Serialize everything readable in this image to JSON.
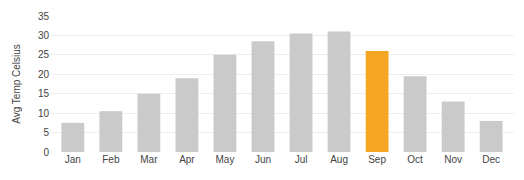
{
  "chart_data": {
    "type": "bar",
    "categories": [
      "Jan",
      "Feb",
      "Mar",
      "Apr",
      "May",
      "Jun",
      "Jul",
      "Aug",
      "Sep",
      "Oct",
      "Nov",
      "Dec"
    ],
    "values": [
      7.5,
      10.5,
      15,
      19,
      25,
      28.5,
      30.5,
      31,
      26,
      19.5,
      13,
      8
    ],
    "colors": [
      "#cacaca",
      "#cacaca",
      "#cacaca",
      "#cacaca",
      "#cacaca",
      "#cacaca",
      "#cacaca",
      "#cacaca",
      "#f5a623",
      "#cacaca",
      "#cacaca",
      "#cacaca"
    ],
    "ylabel": "Avg Temp Celsius",
    "ylim": [
      0,
      35
    ],
    "yticks": [
      0,
      5,
      10,
      15,
      20,
      25,
      30,
      35
    ],
    "grid": true
  }
}
